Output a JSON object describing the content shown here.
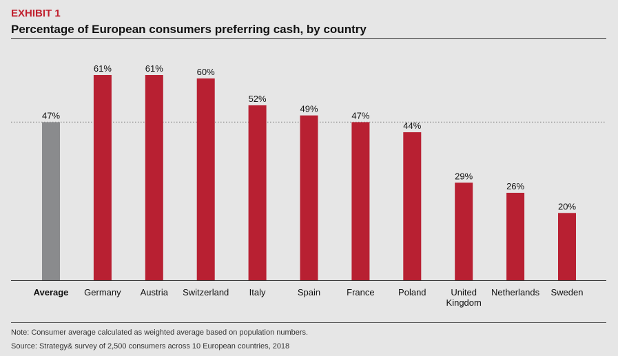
{
  "header": {
    "exhibit": "EXHIBIT 1",
    "title": "Percentage of European consumers preferring cash, by country"
  },
  "footer": {
    "note": "Note: Consumer average calculated as weighted average based on population numbers.",
    "source": "Source: Strategy& survey of 2,500 consumers across 10 European countries, 2018"
  },
  "colors": {
    "average_bar": "#8a8b8d",
    "country_bar": "#b82032",
    "reference_line": "#8f8f8f",
    "accent": "#c0202e"
  },
  "chart_data": {
    "type": "bar",
    "title": "Percentage of European consumers preferring cash, by country",
    "categories": [
      "Average",
      "Germany",
      "Austria",
      "Switzerland",
      "Italy",
      "Spain",
      "France",
      "Poland",
      "United Kingdom",
      "Netherlands",
      "Sweden"
    ],
    "category_lines": [
      [
        "Average"
      ],
      [
        "Germany"
      ],
      [
        "Austria"
      ],
      [
        "Switzerland"
      ],
      [
        "Italy"
      ],
      [
        "Spain"
      ],
      [
        "France"
      ],
      [
        "Poland"
      ],
      [
        "United",
        "Kingdom"
      ],
      [
        "Netherlands"
      ],
      [
        "Sweden"
      ]
    ],
    "values": [
      47,
      61,
      61,
      60,
      52,
      49,
      47,
      44,
      29,
      26,
      20
    ],
    "data_labels": [
      "47%",
      "61%",
      "61%",
      "60%",
      "52%",
      "49%",
      "47%",
      "44%",
      "29%",
      "26%",
      "20%"
    ],
    "reference_line": {
      "value": 47,
      "style": "dotted"
    },
    "unit": "%",
    "ylim": [
      0,
      61
    ],
    "grid": false,
    "legend": "none"
  }
}
